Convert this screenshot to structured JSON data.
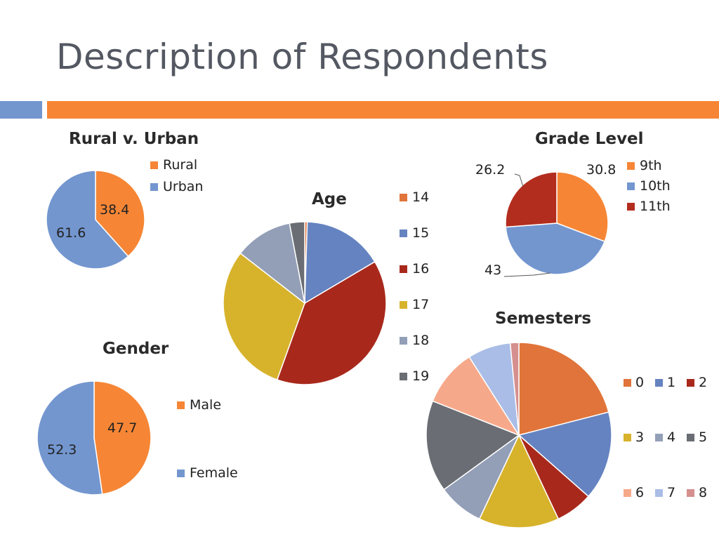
{
  "slide": {
    "title": "Description of Respondents",
    "colors": {
      "accent_orange": "#f68635",
      "accent_blue": "#7396cf",
      "title_gray": "#545862"
    }
  },
  "chart_data": [
    {
      "id": "rural",
      "type": "pie",
      "title": "Rural v. Urban",
      "categories": [
        "Rural",
        "Urban"
      ],
      "values": [
        38.4,
        61.6
      ],
      "labels": [
        "38.4",
        "61.6"
      ],
      "colors": [
        "#f68635",
        "#7396cf"
      ],
      "legend": "right"
    },
    {
      "id": "age",
      "type": "pie",
      "title": "Age",
      "categories": [
        "14",
        "15",
        "16",
        "17",
        "18",
        "19"
      ],
      "values": [
        0.5,
        16,
        39,
        30,
        11.5,
        3
      ],
      "colors": [
        "#e0743a",
        "#6583c0",
        "#a8291c",
        "#d7b32c",
        "#939fb7",
        "#6a6d73"
      ],
      "legend": "right"
    },
    {
      "id": "grade",
      "type": "pie",
      "title": "Grade Level",
      "categories": [
        "9th",
        "10th",
        "11th"
      ],
      "values": [
        30.8,
        43,
        26.2
      ],
      "labels": [
        "30.8",
        "43",
        "26.2"
      ],
      "colors": [
        "#f68635",
        "#7396cf",
        "#b32d1e"
      ],
      "legend": "right"
    },
    {
      "id": "gender",
      "type": "pie",
      "title": "Gender",
      "categories": [
        "Male",
        "Female"
      ],
      "values": [
        47.7,
        52.3
      ],
      "labels": [
        "47.7",
        "52.3"
      ],
      "colors": [
        "#f68635",
        "#7396cf"
      ],
      "legend": "right"
    },
    {
      "id": "semesters",
      "type": "pie",
      "title": "Semesters",
      "categories": [
        "0",
        "1",
        "2",
        "3",
        "4",
        "5",
        "6",
        "7",
        "8"
      ],
      "values": [
        21,
        15.5,
        6.5,
        14,
        8,
        16,
        10,
        7.5,
        1.5
      ],
      "colors": [
        "#e0743a",
        "#6583c0",
        "#a8291c",
        "#d7b32c",
        "#939fb7",
        "#6a6d73",
        "#f6a98a",
        "#a9bde6",
        "#d58f8f"
      ],
      "legend": "right"
    }
  ]
}
